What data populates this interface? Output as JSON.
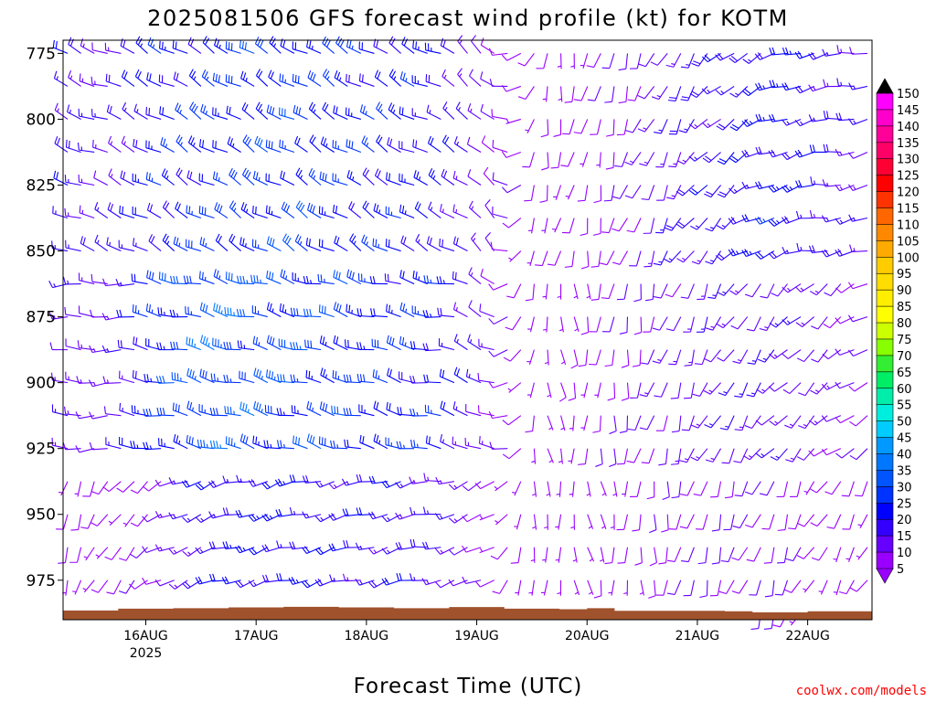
{
  "chart_data": {
    "type": "wind-barb-time-height",
    "title": "2025081506 GFS forecast wind profile (kt) for KOTM",
    "xlabel": "Forecast Time (UTC)",
    "credit": "coolwx.com/models",
    "y_axis": {
      "unit": "hPa",
      "inverted": true,
      "range": [
        770,
        990
      ],
      "ticks": [
        775,
        800,
        825,
        850,
        875,
        900,
        925,
        950,
        975
      ]
    },
    "x_axis": {
      "range_hours": [
        0,
        176
      ],
      "ticks": [
        {
          "label": "16AUG",
          "sublabel": "2025",
          "hour": 18
        },
        {
          "label": "17AUG",
          "sublabel": "",
          "hour": 42
        },
        {
          "label": "18AUG",
          "sublabel": "",
          "hour": 66
        },
        {
          "label": "19AUG",
          "sublabel": "",
          "hour": 90
        },
        {
          "label": "20AUG",
          "sublabel": "",
          "hour": 114
        },
        {
          "label": "21AUG",
          "sublabel": "",
          "hour": 138
        },
        {
          "label": "22AUG",
          "sublabel": "",
          "hour": 162
        }
      ]
    },
    "levels_hpa": [
      775,
      787.5,
      800,
      812.5,
      825,
      837.5,
      850,
      862.5,
      875,
      887.5,
      900,
      912.5,
      925,
      937.5,
      950,
      962.5,
      975,
      987.5
    ],
    "colorbar": {
      "labels": [
        "150",
        "145",
        "140",
        "135",
        "130",
        "125",
        "120",
        "115",
        "110",
        "105",
        "100",
        "95",
        "90",
        "85",
        "80",
        "75",
        "70",
        "65",
        "60",
        "55",
        "50",
        "45",
        "40",
        "35",
        "30",
        "25",
        "20",
        "15",
        "10",
        "5"
      ],
      "colors": [
        "#000000",
        "#ff00ff",
        "#ff00cc",
        "#ff0099",
        "#ff0066",
        "#ff0033",
        "#ff0000",
        "#ff3300",
        "#ff6600",
        "#ff8800",
        "#ffaa00",
        "#ffcc00",
        "#ffdd00",
        "#ffee00",
        "#ffff00",
        "#ccff00",
        "#88ff00",
        "#33ee33",
        "#00ee66",
        "#00eeaa",
        "#00eedd",
        "#00ccff",
        "#0099ff",
        "#0077ff",
        "#0055ff",
        "#0033ff",
        "#0000ff",
        "#3300ff",
        "#6600ff",
        "#9900ff"
      ]
    },
    "terrain": {
      "color": "#a0522d",
      "surface_hpa": [
        [
          0,
          986.5
        ],
        [
          12,
          985.8
        ],
        [
          24,
          985.6
        ],
        [
          36,
          985.3
        ],
        [
          48,
          985.1
        ],
        [
          60,
          985.3
        ],
        [
          72,
          985.6
        ],
        [
          84,
          985.2
        ],
        [
          96,
          985.8
        ],
        [
          108,
          986.0
        ],
        [
          114,
          985.6
        ],
        [
          120,
          986.6
        ],
        [
          132,
          986.6
        ],
        [
          144,
          986.8
        ],
        [
          150,
          987.2
        ],
        [
          162,
          986.8
        ],
        [
          176,
          986.6
        ]
      ]
    },
    "wind_series": [
      {
        "name": "upper",
        "levels": [
          775,
          850
        ],
        "speed_kt": [
          18,
          14,
          22,
          24,
          26,
          26,
          24,
          22,
          20,
          10,
          8,
          8,
          10,
          16,
          18,
          22,
          18,
          14
        ],
        "dir_deg": [
          292,
          292,
          300,
          300,
          300,
          300,
          300,
          300,
          295,
          320,
          190,
          190,
          200,
          210,
          230,
          250,
          260,
          260
        ]
      },
      {
        "name": "mid",
        "levels": [
          862.5,
          925
        ],
        "speed_kt": [
          14,
          12,
          24,
          32,
          30,
          28,
          26,
          24,
          22,
          12,
          6,
          8,
          10,
          12,
          14,
          14,
          12,
          10
        ],
        "dir_deg": [
          270,
          270,
          280,
          285,
          285,
          285,
          285,
          285,
          280,
          300,
          170,
          180,
          190,
          200,
          210,
          220,
          230,
          240
        ]
      },
      {
        "name": "low",
        "levels": [
          937.5,
          987.5
        ],
        "speed_kt": [
          8,
          8,
          10,
          18,
          20,
          20,
          18,
          18,
          16,
          8,
          6,
          6,
          8,
          10,
          10,
          10,
          8,
          8
        ],
        "dir_deg": [
          200,
          210,
          240,
          250,
          255,
          255,
          255,
          255,
          260,
          240,
          180,
          170,
          180,
          190,
          200,
          200,
          210,
          210
        ]
      }
    ]
  }
}
